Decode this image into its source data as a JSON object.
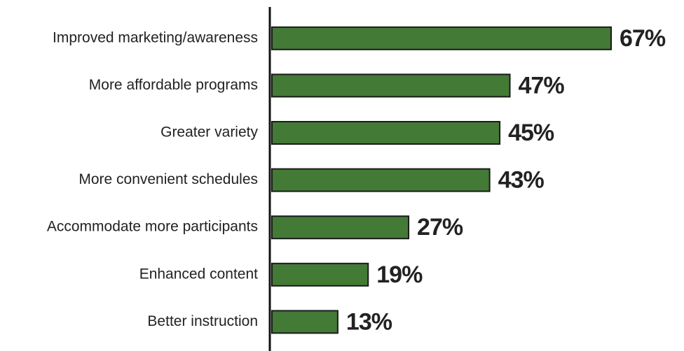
{
  "chart_data": {
    "type": "bar",
    "orientation": "horizontal",
    "categories": [
      "Improved marketing/awareness",
      "More affordable programs",
      "Greater variety",
      "More convenient schedules",
      "Accommodate more participants",
      "Enhanced content",
      "Better instruction"
    ],
    "values": [
      67,
      47,
      45,
      43,
      27,
      19,
      13
    ],
    "value_labels": [
      "67%",
      "47%",
      "45%",
      "43%",
      "27%",
      "19%",
      "13%"
    ],
    "color": "#437a36"
  }
}
